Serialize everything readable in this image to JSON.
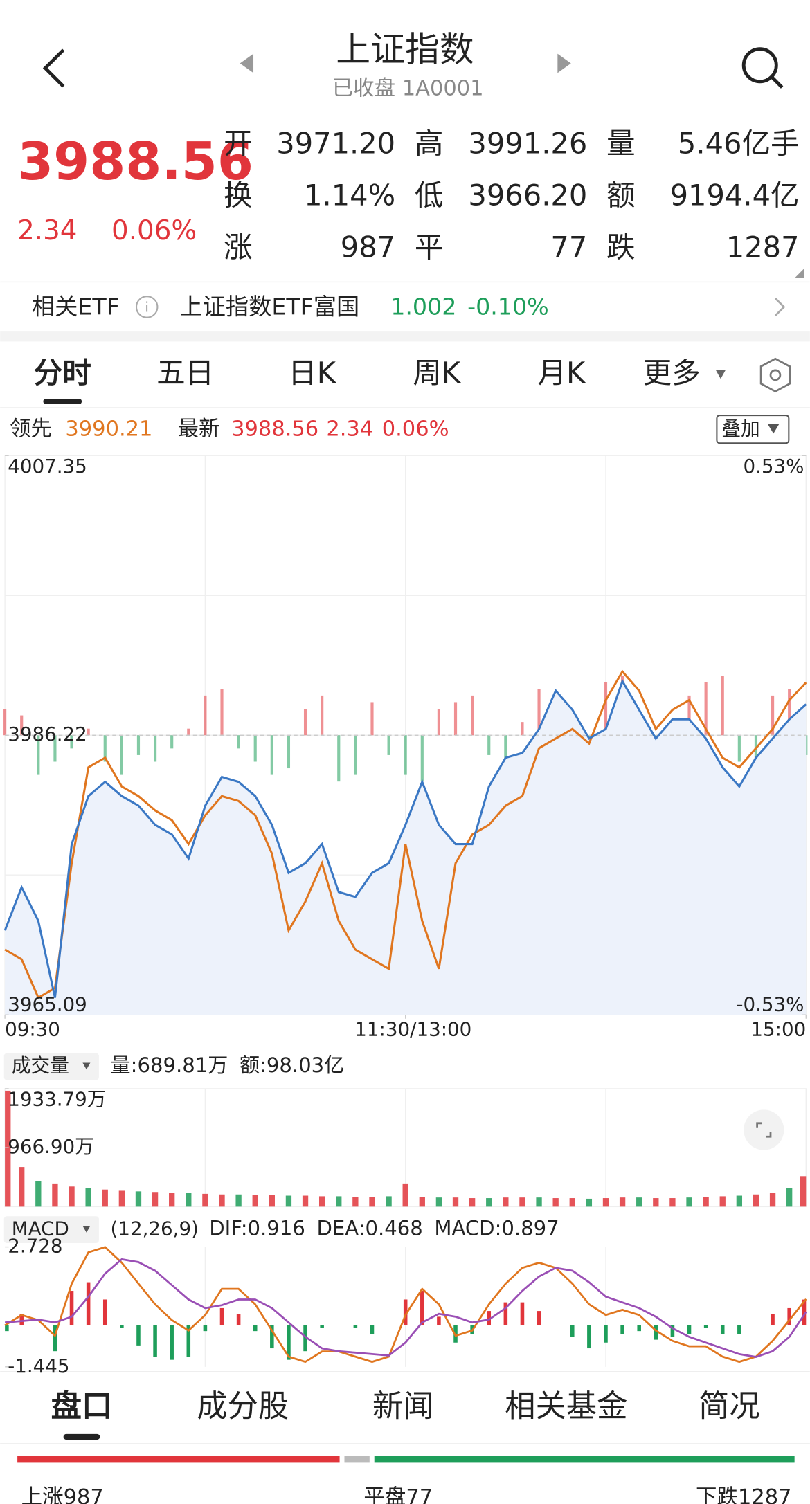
{
  "header": {
    "title": "上证指数",
    "subtitle": "已收盘 1A0001"
  },
  "quote": {
    "price": "3988.56",
    "change": "2.34",
    "change_pct": "0.06%",
    "color": "#e1353b",
    "stats": [
      {
        "label": "开",
        "value": "3971.20",
        "color": "#1e9e5a"
      },
      {
        "label": "高",
        "value": "3991.26",
        "color": "#e1353b"
      },
      {
        "label": "量",
        "value": "5.46亿手",
        "color": "#222222"
      },
      {
        "label": "换",
        "value": "1.14%",
        "color": "#222222"
      },
      {
        "label": "低",
        "value": "3966.20",
        "color": "#1e9e5a"
      },
      {
        "label": "额",
        "value": "9194.4亿",
        "color": "#222222"
      },
      {
        "label": "涨",
        "value": "987",
        "color": "#e1353b"
      },
      {
        "label": "平",
        "value": "77",
        "color": "#222222"
      },
      {
        "label": "跌",
        "value": "1287",
        "color": "#1e9e5a"
      }
    ]
  },
  "etf": {
    "label": "相关ETF",
    "name": "上证指数ETF富国",
    "price": "1.002",
    "change": "-0.10%"
  },
  "tabs": [
    "分时",
    "五日",
    "日K",
    "周K",
    "月K",
    "更多"
  ],
  "overlay_button": "叠加",
  "info": {
    "lead": "3990.21",
    "last": "3988.56",
    "change": "2.34",
    "change_pct": "0.06%"
  },
  "chart_data": [
    {
      "type": "line",
      "x": [
        0,
        5,
        10,
        15,
        20,
        25,
        30,
        35,
        40,
        45,
        50,
        55,
        60,
        65,
        70,
        75,
        80,
        85,
        90,
        95,
        100,
        105,
        110,
        115,
        120,
        125,
        130,
        135,
        140,
        145,
        150,
        155,
        160,
        165,
        170,
        175,
        180,
        185,
        190,
        195,
        200,
        205,
        210,
        215,
        220,
        225,
        230,
        235,
        240
      ],
      "xlim": [
        0,
        240
      ],
      "xticks": [
        {
          "value": 0,
          "label": "09:30"
        },
        {
          "value": 120,
          "label": "11:30/13:00"
        },
        {
          "value": 240,
          "label": "15:00"
        }
      ],
      "ylim": [
        3965.09,
        4007.35
      ],
      "yticks": [
        4007.35,
        3986.22,
        3965.09
      ],
      "y2lim": [
        -0.53,
        0.53
      ],
      "y2ticks": [
        {
          "value": 0.53,
          "label": "0.53%"
        },
        {
          "value": -0.53,
          "label": "-0.53%"
        }
      ],
      "up_color": "#e1353b",
      "down_color": "#1e9e5a",
      "series": [
        {
          "name": "最新",
          "color": "#3b78c4",
          "area": "#edf2fb",
          "values": [
            3971.47,
            3974.73,
            3972.19,
            3966.39,
            3977.99,
            3981.62,
            3982.7,
            3981.62,
            3980.89,
            3979.44,
            3978.72,
            3976.9,
            3980.89,
            3983.07,
            3982.7,
            3981.62,
            3979.44,
            3975.82,
            3976.54,
            3977.99,
            3974.37,
            3974.0,
            3975.82,
            3976.54,
            3979.44,
            3982.7,
            3979.44,
            3977.99,
            3977.99,
            3982.34,
            3984.52,
            3984.88,
            3986.69,
            3989.59,
            3988.14,
            3985.97,
            3986.69,
            3990.31,
            3988.14,
            3985.97,
            3987.42,
            3987.42,
            3985.97,
            3983.79,
            3982.34,
            3984.52,
            3985.97,
            3987.42,
            3988.56
          ]
        },
        {
          "name": "领先",
          "color": "#e0761f",
          "values": [
            3970.02,
            3969.29,
            3966.39,
            3967.12,
            3976.54,
            3983.79,
            3984.52,
            3982.34,
            3981.62,
            3980.53,
            3979.8,
            3977.99,
            3980.17,
            3981.62,
            3981.25,
            3980.17,
            3977.27,
            3971.47,
            3973.64,
            3976.54,
            3972.19,
            3970.02,
            3969.29,
            3968.57,
            3977.99,
            3972.19,
            3968.57,
            3976.54,
            3978.72,
            3979.44,
            3980.89,
            3981.62,
            3985.24,
            3985.97,
            3986.69,
            3985.6,
            3988.87,
            3991.04,
            3989.59,
            3986.69,
            3988.14,
            3988.87,
            3986.69,
            3984.52,
            3983.79,
            3985.24,
            3986.69,
            3988.87,
            3990.21
          ]
        },
        {
          "type": "bar",
          "values": [
            3988.22,
            3987.72,
            3983.22,
            3984.22,
            3985.22,
            3986.72,
            3984.22,
            3983.22,
            3984.72,
            3984.22,
            3985.22,
            3986.72,
            3989.22,
            3989.72,
            3985.22,
            3984.22,
            3983.22,
            3983.72,
            3988.22,
            3989.22,
            3982.72,
            3983.22,
            3988.72,
            3984.72,
            3983.22,
            3982.72,
            3988.22,
            3988.72,
            3989.22,
            3984.72,
            3984.22,
            3987.22,
            3989.72,
            3989.22,
            3984.22,
            3983.72,
            3990.22,
            3990.72,
            3983.22,
            3983.72,
            3984.22,
            3989.22,
            3990.22,
            3990.72,
            3984.22,
            3983.72,
            3989.22,
            3989.72,
            3984.72
          ]
        }
      ]
    },
    {
      "type": "bar",
      "title": "成交量",
      "legend": [
        {
          "text": "量:",
          "color": "#222222"
        },
        {
          "text": "689.81万",
          "color": "#e0761f"
        },
        {
          "text": "额:",
          "color": "#222222"
        },
        {
          "text": "98.03亿",
          "color": "#3b78c4"
        }
      ],
      "x": [
        0,
        5,
        10,
        15,
        20,
        25,
        30,
        35,
        40,
        45,
        50,
        55,
        60,
        65,
        70,
        75,
        80,
        85,
        90,
        95,
        100,
        105,
        110,
        115,
        120,
        125,
        130,
        135,
        140,
        145,
        150,
        155,
        160,
        165,
        170,
        175,
        180,
        185,
        190,
        195,
        200,
        205,
        210,
        215,
        220,
        225,
        230,
        235,
        240
      ],
      "xlim": [
        0,
        240
      ],
      "ylim": [
        0,
        1933.79
      ],
      "yticks": [
        {
          "value": 1933.79,
          "label": "1933.79万"
        },
        {
          "value": 966.9,
          "label": "966.90万"
        }
      ],
      "color": "#e1353b",
      "down_color": "#1e9e5a",
      "values": [
        1900,
        650,
        420,
        380,
        330,
        300,
        280,
        260,
        250,
        240,
        230,
        220,
        210,
        200,
        200,
        190,
        190,
        180,
        180,
        170,
        170,
        160,
        160,
        170,
        380,
        160,
        150,
        150,
        140,
        140,
        150,
        150,
        150,
        140,
        140,
        130,
        140,
        150,
        150,
        140,
        140,
        150,
        160,
        170,
        180,
        200,
        220,
        300,
        500
      ]
    },
    {
      "type": "macd",
      "title": "MACD",
      "params": "(12,26,9)",
      "x": [
        0,
        5,
        10,
        15,
        20,
        25,
        30,
        35,
        40,
        45,
        50,
        55,
        60,
        65,
        70,
        75,
        80,
        85,
        90,
        95,
        100,
        105,
        110,
        115,
        120,
        125,
        130,
        135,
        140,
        145,
        150,
        155,
        160,
        165,
        170,
        175,
        180,
        185,
        190,
        195,
        200,
        205,
        210,
        215,
        220,
        225,
        230,
        235,
        240
      ],
      "xlim": [
        0,
        240
      ],
      "ylim": [
        -1.445,
        2.728
      ],
      "yticks": [
        2.728,
        -1.445
      ],
      "up_color": "#e1353b",
      "down_color": "#1e9e5a",
      "series": [
        {
          "label": "DIF:0.916",
          "color": "#e0761f",
          "type": "line",
          "values": [
            0,
            0.36,
            0.18,
            -0.36,
            1.45,
            2.54,
            2.72,
            2.18,
            1.45,
            0.73,
            0.18,
            -0.18,
            0.36,
            1.27,
            1.27,
            0.73,
            -0.18,
            -1.09,
            -1.27,
            -0.91,
            -0.91,
            -1.09,
            -1.27,
            -1.09,
            0.36,
            1.27,
            0.73,
            -0.36,
            -0.18,
            0.73,
            1.45,
            2.0,
            2.18,
            2.0,
            1.45,
            0.73,
            0.36,
            0.54,
            0.36,
            -0.18,
            -0.54,
            -0.73,
            -0.73,
            -1.09,
            -1.27,
            -1.09,
            -0.54,
            0.18,
            0.916
          ]
        },
        {
          "label": "DEA:0.468",
          "color": "#9a4fb5",
          "type": "line",
          "values": [
            0.1,
            0.15,
            0.2,
            0.1,
            0.3,
            1.0,
            1.8,
            2.3,
            2.2,
            1.9,
            1.4,
            0.9,
            0.6,
            0.7,
            0.9,
            0.9,
            0.6,
            0.1,
            -0.4,
            -0.8,
            -0.9,
            -0.95,
            -1.0,
            -1.05,
            -0.6,
            0.1,
            0.4,
            0.3,
            0.1,
            0.2,
            0.6,
            1.2,
            1.7,
            2.0,
            1.9,
            1.5,
            1.0,
            0.8,
            0.6,
            0.3,
            -0.1,
            -0.4,
            -0.6,
            -0.8,
            -1.0,
            -1.1,
            -0.9,
            -0.4,
            0.468
          ]
        },
        {
          "label": "MACD:0.897",
          "color": "#e1353b",
          "type": "bar",
          "values": [
            -0.2,
            0.4,
            0,
            -0.9,
            1.2,
            1.5,
            0.9,
            -0.1,
            -0.7,
            -1.1,
            -1.2,
            -1.1,
            -0.2,
            0.6,
            0.4,
            -0.2,
            -0.8,
            -1.2,
            -0.9,
            -0.1,
            0,
            -0.1,
            -0.3,
            0,
            0.9,
            1.2,
            0.3,
            -0.6,
            -0.3,
            0.5,
            0.8,
            0.8,
            0.5,
            0,
            -0.4,
            -0.8,
            -0.6,
            -0.3,
            -0.2,
            -0.5,
            -0.4,
            -0.3,
            -0.1,
            -0.3,
            -0.3,
            0,
            0.4,
            0.6,
            0.897
          ]
        }
      ]
    },
    {
      "type": "breadth",
      "values": [
        987,
        77,
        1287
      ],
      "value_labels": [
        "上涨987",
        "平盘77",
        "下跌1287"
      ],
      "colors": [
        "#e1353b",
        "#bbbbbb",
        "#1e9e5a"
      ]
    }
  ],
  "bottom_tabs": [
    "盘口",
    "成分股",
    "新闻",
    "相关基金",
    "简况"
  ]
}
